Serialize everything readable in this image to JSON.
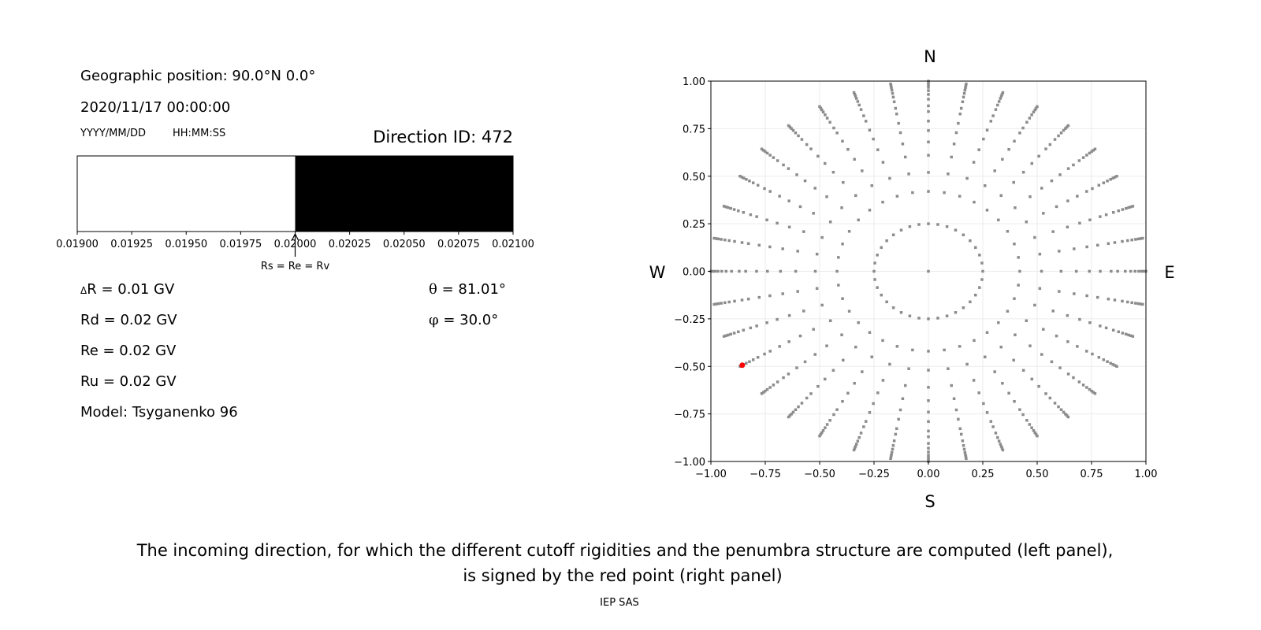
{
  "left_panel": {
    "geo_position": "Geographic position: 90.0°N 0.0°",
    "datetime": "2020/11/17 00:00:00",
    "date_format": "YYYY/MM/DD",
    "time_format": "HH:MM:SS",
    "direction_id": "Direction ID: 472",
    "delta_symbol": "Δ",
    "delta_r": "R = 0.01 GV",
    "rd": "Rd = 0.02 GV",
    "re": "Re = 0.02 GV",
    "ru": "Ru = 0.02 GV",
    "model": "Model: Tsyganenko 96",
    "theta_symbol": "θ",
    "theta": " = 81.01°",
    "phi_symbol": "φ",
    "phi": " = 30.0°"
  },
  "chart_data": [
    {
      "type": "bar",
      "xlim": [
        0.019,
        0.021
      ],
      "tick_labels": [
        "0.01900",
        "0.01925",
        "0.01950",
        "0.01975",
        "0.02000",
        "0.02025",
        "0.02050",
        "0.02075",
        "0.02100"
      ],
      "ticks": [
        0.019,
        0.01925,
        0.0195,
        0.01975,
        0.02,
        0.02025,
        0.0205,
        0.02075,
        0.021
      ],
      "segments": [
        {
          "from": 0.019,
          "to": 0.02,
          "color": "#ffffff"
        },
        {
          "from": 0.02,
          "to": 0.021,
          "color": "#000000"
        }
      ],
      "annotation": {
        "text": "Rs = Re = Rv",
        "x": 0.02
      }
    },
    {
      "type": "scatter",
      "xlim": [
        -1,
        1
      ],
      "ylim": [
        -1,
        1
      ],
      "grid": true,
      "tick_labels": [
        "−1.00",
        "−0.75",
        "−0.50",
        "−0.25",
        "0.00",
        "0.25",
        "0.50",
        "0.75",
        "1.00"
      ],
      "ticks": [
        -1,
        -0.75,
        -0.5,
        -0.25,
        0,
        0.25,
        0.5,
        0.75,
        1
      ],
      "compass": {
        "north": "N",
        "south": "S",
        "west": "W",
        "east": "E"
      },
      "point_color": "#8c8c8c",
      "center_point": [
        0,
        0
      ],
      "inner_ring": {
        "r": 0.25,
        "azimuth_step_deg": 10
      },
      "rays": {
        "azimuth_step_deg": 10,
        "radii": [
          0.42,
          0.52,
          0.61,
          0.68,
          0.74,
          0.79,
          0.84,
          0.87,
          0.905,
          0.93,
          0.95,
          0.967,
          0.98,
          0.99,
          1.0
        ]
      },
      "selected_point": {
        "x": -0.856,
        "y": -0.494,
        "color": "#ff0000"
      }
    }
  ],
  "caption": {
    "line1": "The incoming direction, for which the different cutoff rigidities and the penumbra structure are computed (left panel),",
    "line2": "is signed by the red point (right panel)"
  },
  "credit": "IEP SAS"
}
